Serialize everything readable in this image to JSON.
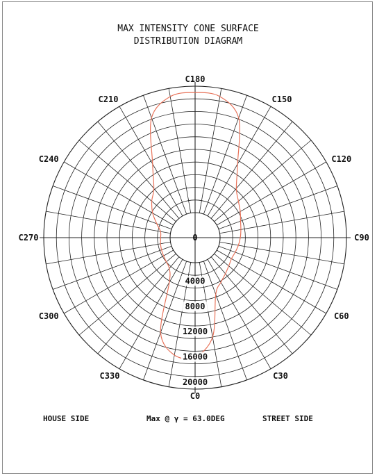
{
  "title_lines": [
    "MAX INTENSITY CONE SURFACE",
    "DISTRIBUTION DIAGRAM"
  ],
  "footer": {
    "left": "HOUSE SIDE",
    "middle": "Max @ γ = 63.0DEG",
    "right": "STREET SIDE"
  },
  "colors": {
    "grid": "#222222",
    "curve": "#e8735a",
    "text": "#111111"
  },
  "chart_data": {
    "type": "polar",
    "title": "MAX INTENSITY CONE SURFACE DISTRIBUTION DIAGRAM",
    "angle_unit": "deg",
    "angle_labels": [
      "C0",
      "C30",
      "C60",
      "C90",
      "C120",
      "C150",
      "C180",
      "C210",
      "C240",
      "C270",
      "C300",
      "C330"
    ],
    "radial_labels": [
      "0",
      "4000",
      "8000",
      "12000",
      "16000",
      "20000"
    ],
    "radial_range": [
      0,
      20000
    ],
    "series": [
      {
        "angles": [
          0,
          10,
          20,
          30,
          40,
          50,
          60,
          70,
          80,
          90,
          100,
          110,
          120,
          130,
          140,
          150,
          160,
          170,
          180,
          190,
          200,
          210,
          220,
          230,
          240,
          250,
          260,
          270,
          280,
          290,
          300,
          310,
          320,
          330,
          340,
          350
        ],
        "values": [
          14900,
          12000,
          5600,
          4200,
          3500,
          3000,
          2700,
          2800,
          3000,
          3200,
          3400,
          3700,
          4300,
          5000,
          6200,
          9500,
          16200,
          18700,
          19000,
          18700,
          16200,
          9500,
          6200,
          5000,
          3800,
          2500,
          1600,
          1500,
          1600,
          1700,
          1800,
          2000,
          2400,
          4200,
          12000,
          14900
        ]
      }
    ]
  }
}
